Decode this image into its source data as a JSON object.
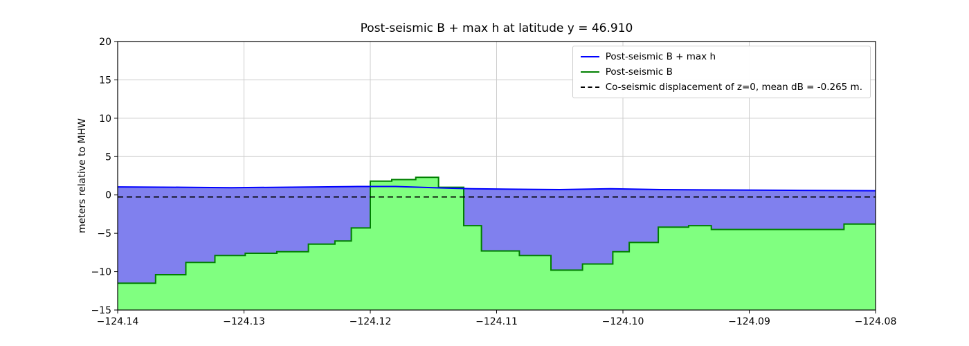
{
  "chart_data": {
    "type": "area",
    "title": "Post-seismic B + max h at latitude y = 46.910",
    "xlabel": "",
    "ylabel": "meters relative to MHW",
    "xlim": [
      -124.14,
      -124.08
    ],
    "ylim": [
      -15,
      20
    ],
    "grid": true,
    "legend_position": "upper right",
    "xticks": [
      -124.14,
      -124.13,
      -124.12,
      -124.11,
      -124.1,
      -124.09,
      -124.08
    ],
    "xtick_labels": [
      "−124.14",
      "−124.13",
      "−124.12",
      "−124.11",
      "−124.10",
      "−124.09",
      "−124.08"
    ],
    "yticks": [
      -15,
      -10,
      -5,
      0,
      5,
      10,
      15,
      20
    ],
    "ytick_labels": [
      "−15",
      "−10",
      "−5",
      "0",
      "5",
      "10",
      "15",
      "20"
    ],
    "colors": {
      "blue_line": "#0000ff",
      "blue_fill": "#8080ee",
      "green_line": "#008000",
      "green_fill": "#80ff80",
      "dashed_line": "#000000",
      "grid": "#cccccc",
      "frame": "#000000"
    },
    "series": [
      {
        "name": "Post-seismic B + max h",
        "type": "line",
        "color": "#0000ff",
        "fill_color": "#8080ee",
        "points": [
          [
            -124.14,
            1.05
          ],
          [
            -124.135,
            1.0
          ],
          [
            -124.131,
            0.95
          ],
          [
            -124.127,
            1.0
          ],
          [
            -124.124,
            1.05
          ],
          [
            -124.121,
            1.1
          ],
          [
            -124.118,
            1.1
          ],
          [
            -124.115,
            0.95
          ],
          [
            -124.112,
            0.8
          ],
          [
            -124.109,
            0.75
          ],
          [
            -124.105,
            0.7
          ],
          [
            -124.101,
            0.8
          ],
          [
            -124.097,
            0.7
          ],
          [
            -124.092,
            0.65
          ],
          [
            -124.086,
            0.6
          ],
          [
            -124.08,
            0.55
          ]
        ]
      },
      {
        "name": "Post-seismic B",
        "type": "step",
        "color": "#008000",
        "fill_color": "#80ff80",
        "points": [
          [
            -124.14,
            -11.5
          ],
          [
            -124.137,
            -10.4
          ],
          [
            -124.1346,
            -8.8
          ],
          [
            -124.1323,
            -7.9
          ],
          [
            -124.1299,
            -7.6
          ],
          [
            -124.1274,
            -7.4
          ],
          [
            -124.1249,
            -6.4
          ],
          [
            -124.1228,
            -6.0
          ],
          [
            -124.1215,
            -4.3
          ],
          [
            -124.12,
            1.8
          ],
          [
            -124.1183,
            2.0
          ],
          [
            -124.1164,
            2.3
          ],
          [
            -124.1146,
            1.0
          ],
          [
            -124.1126,
            -4.0
          ],
          [
            -124.1112,
            -7.3
          ],
          [
            -124.1082,
            -7.9
          ],
          [
            -124.1057,
            -9.8
          ],
          [
            -124.1032,
            -9.0
          ],
          [
            -124.1008,
            -7.4
          ],
          [
            -124.0995,
            -6.2
          ],
          [
            -124.0972,
            -4.2
          ],
          [
            -124.0948,
            -4.0
          ],
          [
            -124.093,
            -4.5
          ],
          [
            -124.0825,
            -3.8
          ]
        ]
      },
      {
        "name": "Co-seismic displacement of z=0, mean dB = -0.265 m.",
        "type": "hline",
        "style": "dashed",
        "color": "#000000",
        "y": -0.265
      }
    ]
  }
}
